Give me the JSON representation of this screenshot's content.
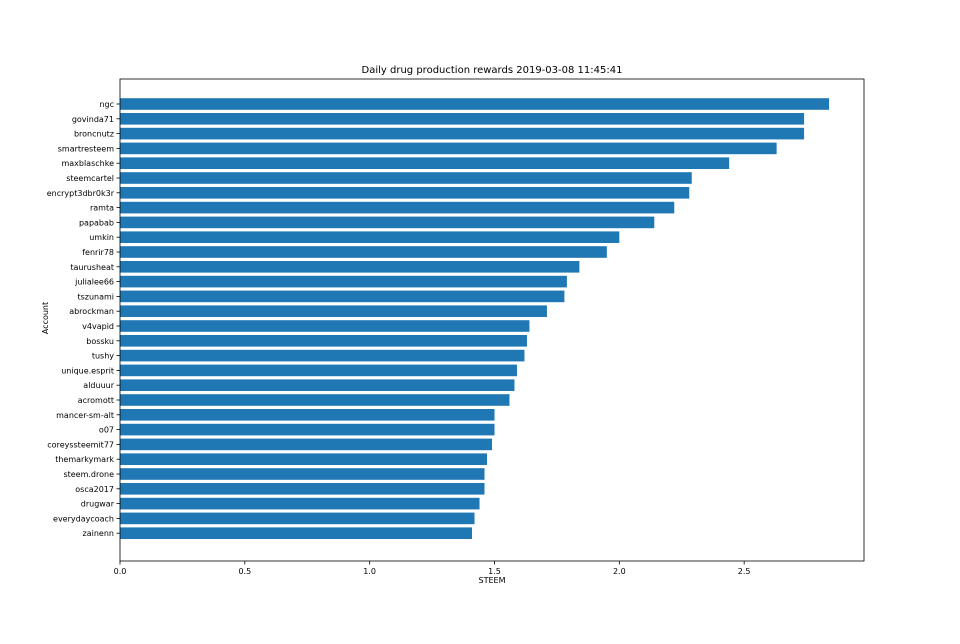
{
  "chart_data": {
    "type": "bar",
    "orientation": "horizontal",
    "title": "Daily drug production rewards 2019-03-08 11:45:41",
    "xlabel": "STEEM",
    "ylabel": "Account",
    "xlim": [
      0,
      2.98
    ],
    "xticks": [
      0.0,
      0.5,
      1.0,
      1.5,
      2.0,
      2.5
    ],
    "xtick_labels": [
      "0.0",
      "0.5",
      "1.0",
      "1.5",
      "2.0",
      "2.5"
    ],
    "grid": false,
    "bar_color": "#1f77b4",
    "categories": [
      "ngc",
      "govinda71",
      "broncnutz",
      "smartresteem",
      "maxblaschke",
      "steemcartel",
      "encrypt3dbr0k3r",
      "ramta",
      "papabab",
      "umkin",
      "fenrir78",
      "taurusheat",
      "julialee66",
      "tszunami",
      "abrockman",
      "v4vapid",
      "bossku",
      "tushy",
      "unique.esprit",
      "alduuur",
      "acromott",
      "mancer-sm-alt",
      "o07",
      "coreyssteemit77",
      "themarkymark",
      "steem.drone",
      "osca2017",
      "drugwar",
      "everydaycoach",
      "zainenn"
    ],
    "values": [
      2.84,
      2.74,
      2.74,
      2.63,
      2.44,
      2.29,
      2.28,
      2.22,
      2.14,
      2.0,
      1.95,
      1.84,
      1.79,
      1.78,
      1.71,
      1.64,
      1.63,
      1.62,
      1.59,
      1.58,
      1.56,
      1.5,
      1.5,
      1.49,
      1.47,
      1.46,
      1.46,
      1.44,
      1.42,
      1.41
    ]
  }
}
